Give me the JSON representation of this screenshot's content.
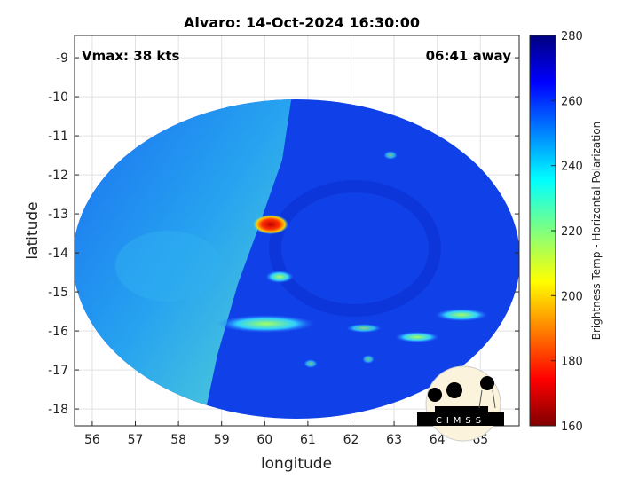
{
  "title": "Alvaro: 14-Oct-2024 16:30:00",
  "annotations": {
    "vmax": "Vmax: 38 kts",
    "time_away": "06:41 away"
  },
  "xaxis": {
    "label": "longitude",
    "ticks": [
      "56",
      "57",
      "58",
      "59",
      "60",
      "61",
      "62",
      "63",
      "64",
      "65"
    ],
    "range": [
      55.59,
      65.9
    ]
  },
  "yaxis": {
    "label": "latitude",
    "ticks": [
      "-9",
      "-10",
      "-11",
      "-12",
      "-13",
      "-14",
      "-15",
      "-16",
      "-17",
      "-18"
    ],
    "range": [
      -18.43,
      -8.43
    ]
  },
  "colorbar": {
    "label": "Brightness Temp - Horizontal Polarization",
    "ticks": [
      "280",
      "260",
      "240",
      "220",
      "200",
      "180",
      "160"
    ],
    "range": [
      160,
      280
    ],
    "colormap": "jet"
  },
  "logo": {
    "text": "CIMSS"
  },
  "grid": true,
  "storm_center": {
    "lon": 60.1,
    "lat": -13.3
  }
}
